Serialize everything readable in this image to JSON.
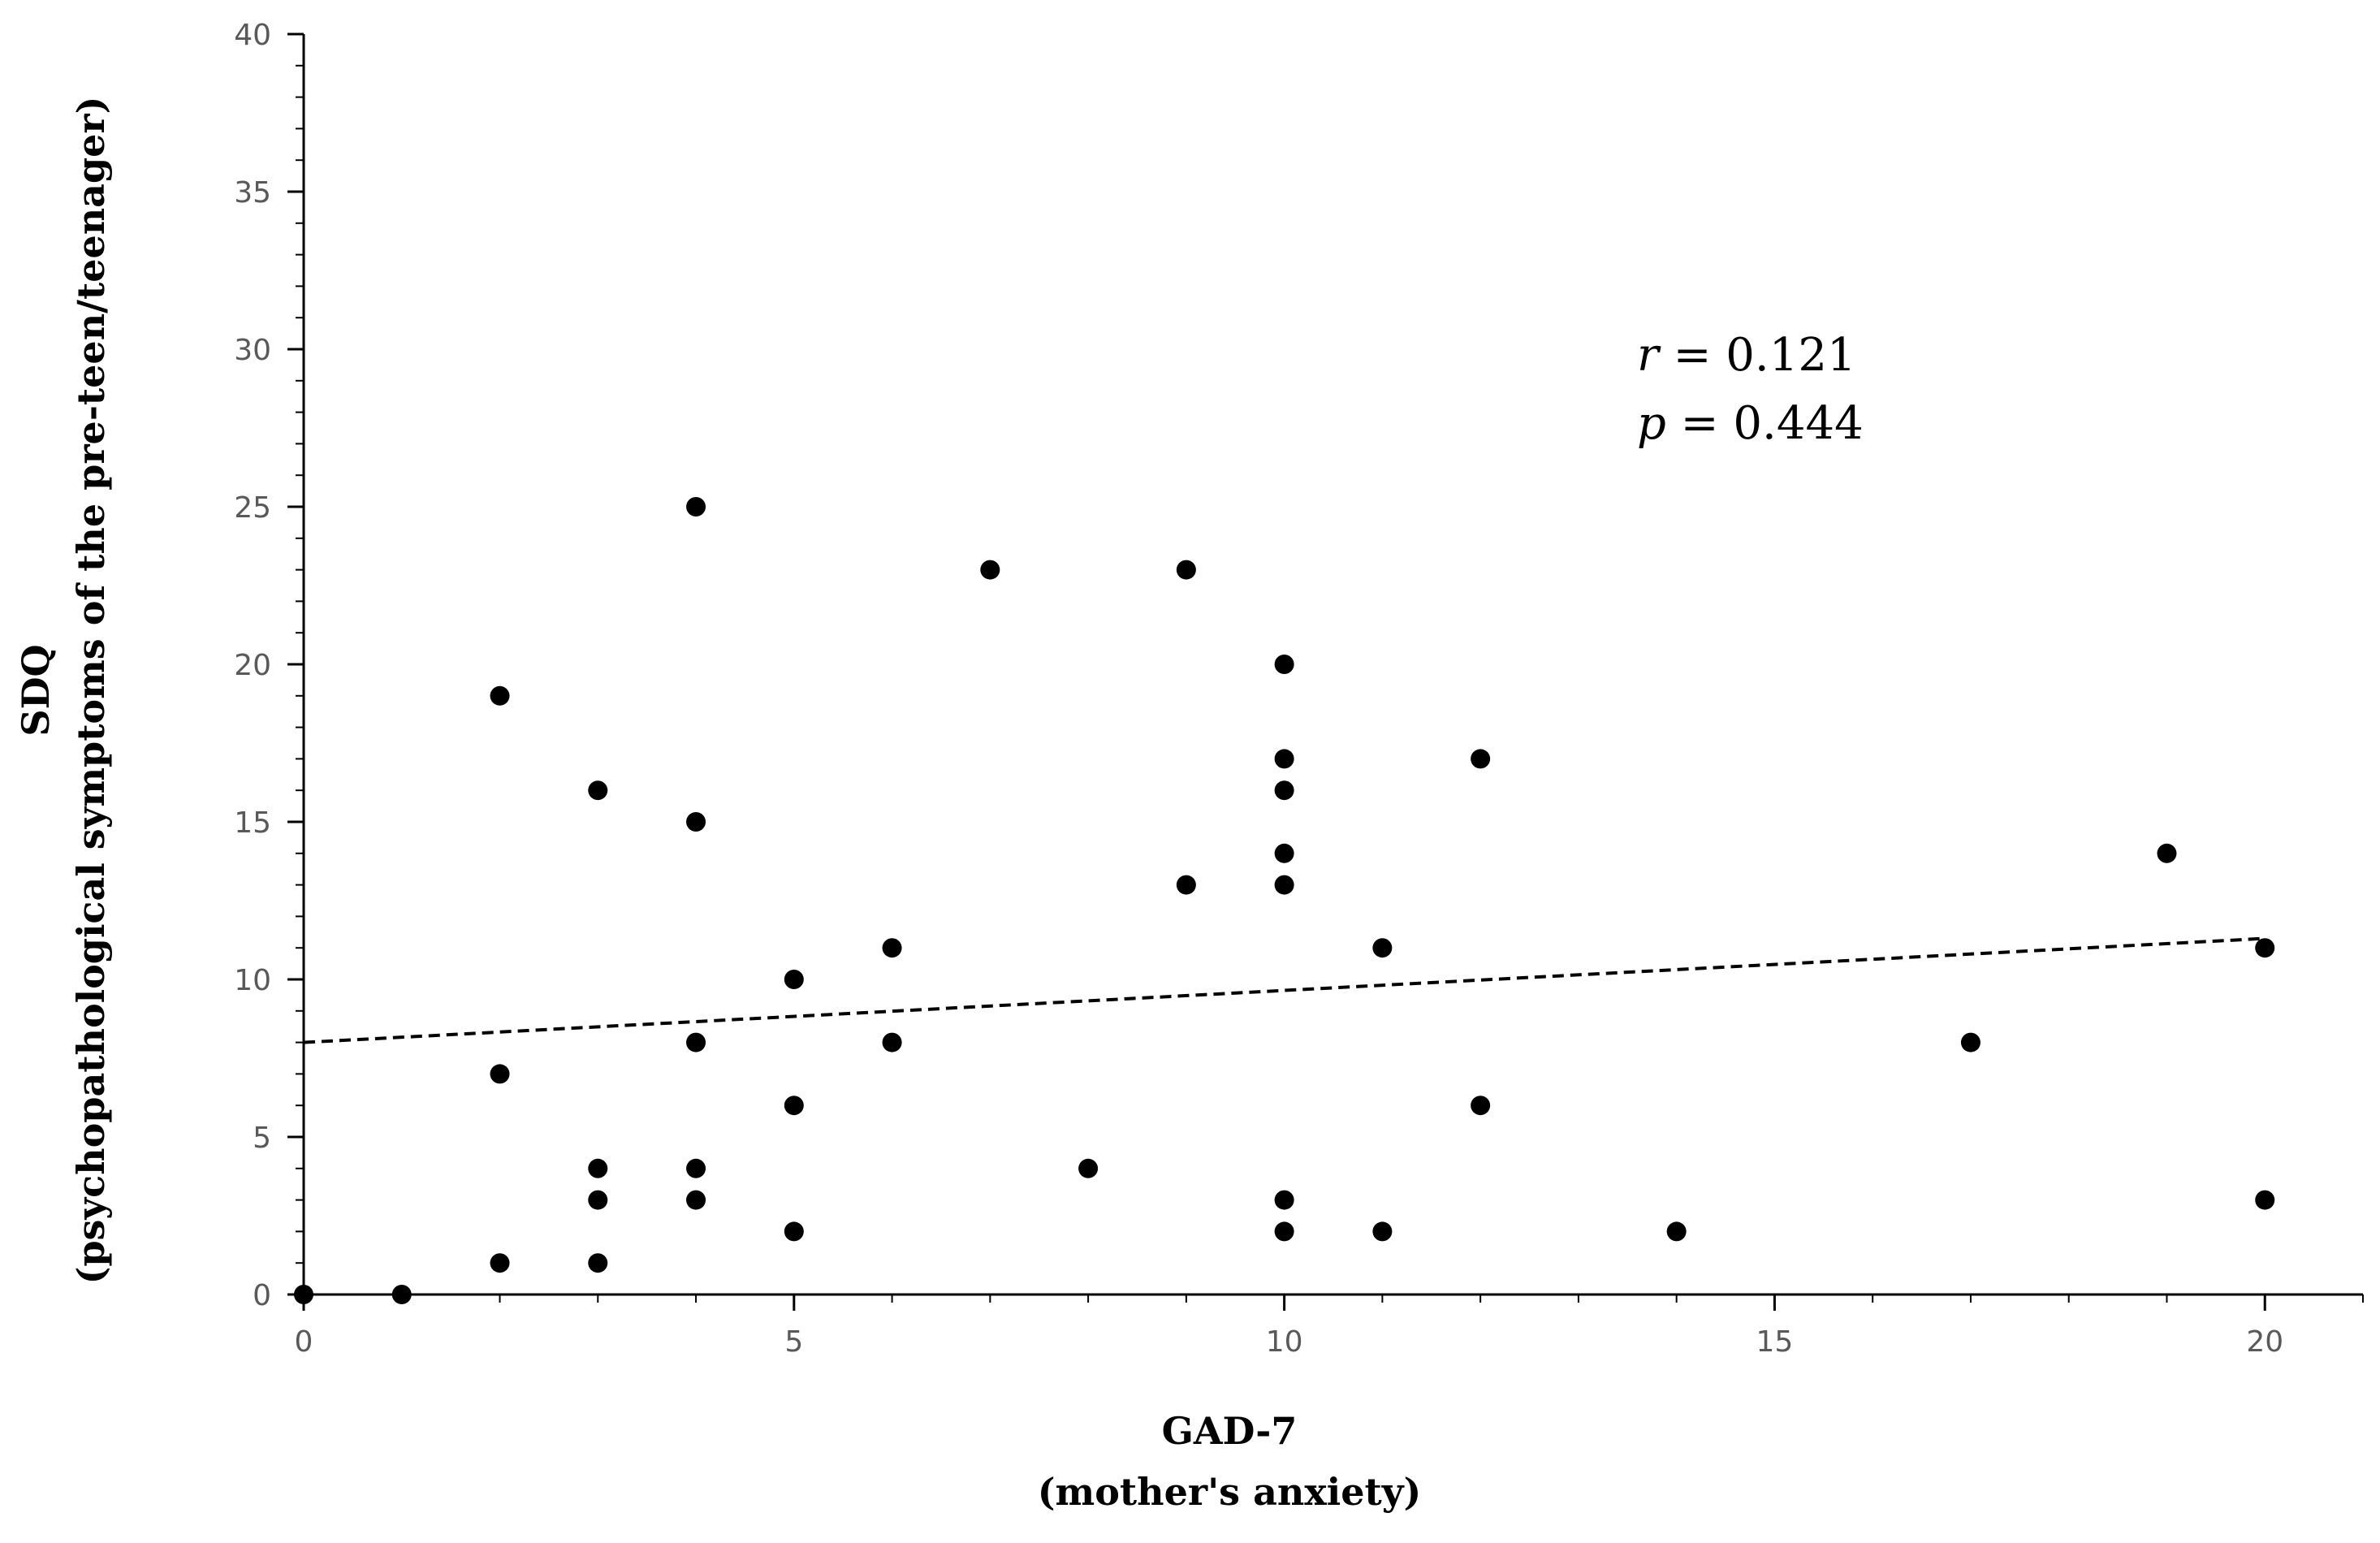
{
  "chart_data": {
    "type": "scatter",
    "title": "",
    "xlabel": "GAD-7",
    "xlabel_sub": "(mother's anxiety)",
    "ylabel": "SDQ",
    "ylabel_sub": "(psychopathological symptoms of the pre-teen/teenager)",
    "xlim": [
      0,
      21
    ],
    "ylim": [
      0,
      40
    ],
    "xticks": [
      0,
      5,
      10,
      15,
      20
    ],
    "yticks": [
      0,
      5,
      10,
      15,
      20,
      25,
      30,
      35,
      40
    ],
    "xtick_labels": [
      "0",
      "5",
      "10",
      "15",
      "20"
    ],
    "ytick_labels": [
      "0",
      "5",
      "10",
      "15",
      "20",
      "25",
      "30",
      "35",
      "40"
    ],
    "x_minor_step": 1,
    "y_minor_step": 1,
    "grid": false,
    "legend": "none",
    "marker_color": "#000000",
    "series": [
      {
        "points": [
          [
            0,
            0
          ],
          [
            1,
            0
          ],
          [
            2,
            19
          ],
          [
            2,
            7
          ],
          [
            2,
            1
          ],
          [
            3,
            16
          ],
          [
            3,
            4
          ],
          [
            3,
            3
          ],
          [
            3,
            1
          ],
          [
            4,
            25
          ],
          [
            4,
            15
          ],
          [
            4,
            8
          ],
          [
            4,
            4
          ],
          [
            4,
            3
          ],
          [
            5,
            10
          ],
          [
            5,
            6
          ],
          [
            5,
            2
          ],
          [
            6,
            11
          ],
          [
            6,
            8
          ],
          [
            7,
            23
          ],
          [
            8,
            4
          ],
          [
            9,
            23
          ],
          [
            9,
            13
          ],
          [
            10,
            20
          ],
          [
            10,
            17
          ],
          [
            10,
            16
          ],
          [
            10,
            14
          ],
          [
            10,
            13
          ],
          [
            10,
            3
          ],
          [
            10,
            2
          ],
          [
            11,
            11
          ],
          [
            11,
            2
          ],
          [
            12,
            17
          ],
          [
            12,
            6
          ],
          [
            14,
            2
          ],
          [
            17,
            8
          ],
          [
            19,
            14
          ],
          [
            20,
            11
          ],
          [
            20,
            3
          ]
        ]
      }
    ],
    "trendline": {
      "style": "dashed",
      "color": "#000000",
      "x_start": 0,
      "y_start": 8.0,
      "x_end": 20,
      "y_end": 11.3
    },
    "annotations": {
      "r_symbol": "r",
      "r_value": " = 0.121",
      "p_symbol": "p",
      "p_value": " = 0.444"
    }
  }
}
